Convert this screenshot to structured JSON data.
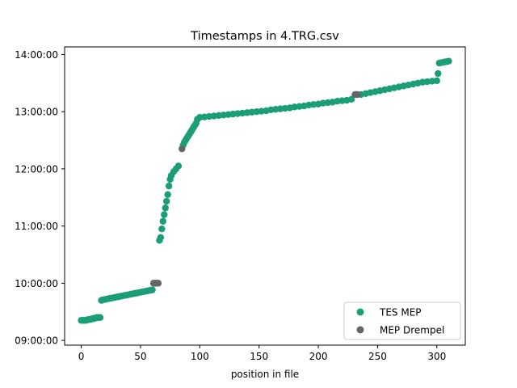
{
  "chart_data": {
    "type": "scatter",
    "title": "Timestamps in 4.TRG.csv",
    "xlabel": "position in file",
    "ylabel": "",
    "xlim": [
      -14,
      324
    ],
    "ylim": [
      "08:55:00",
      "14:08:00"
    ],
    "x_ticks": [
      0,
      50,
      100,
      150,
      200,
      250,
      300
    ],
    "y_ticks": [
      "09:00:00",
      "10:00:00",
      "11:00:00",
      "12:00:00",
      "13:00:00",
      "14:00:00"
    ],
    "grid": false,
    "legend_position": "lower-right",
    "series": [
      {
        "name": "TES MEP",
        "color": "#1b9e77",
        "points": [
          [
            0,
            "09:21:00"
          ],
          [
            1,
            "09:21:00"
          ],
          [
            2,
            "09:21:00"
          ],
          [
            3,
            "09:21:00"
          ],
          [
            4,
            "09:21:00"
          ],
          [
            5,
            "09:21:30"
          ],
          [
            6,
            "09:22:00"
          ],
          [
            7,
            "09:22:00"
          ],
          [
            8,
            "09:22:00"
          ],
          [
            9,
            "09:22:30"
          ],
          [
            10,
            "09:23:00"
          ],
          [
            11,
            "09:23:00"
          ],
          [
            12,
            "09:23:30"
          ],
          [
            13,
            "09:24:00"
          ],
          [
            14,
            "09:24:00"
          ],
          [
            15,
            "09:24:00"
          ],
          [
            16,
            "09:24:00"
          ],
          [
            17,
            "09:42:00"
          ],
          [
            18,
            "09:42:30"
          ],
          [
            20,
            "09:43:00"
          ],
          [
            22,
            "09:43:30"
          ],
          [
            24,
            "09:44:00"
          ],
          [
            26,
            "09:44:30"
          ],
          [
            28,
            "09:45:00"
          ],
          [
            30,
            "09:45:30"
          ],
          [
            32,
            "09:46:00"
          ],
          [
            34,
            "09:46:30"
          ],
          [
            36,
            "09:47:00"
          ],
          [
            38,
            "09:47:30"
          ],
          [
            40,
            "09:48:00"
          ],
          [
            42,
            "09:48:30"
          ],
          [
            44,
            "09:49:00"
          ],
          [
            46,
            "09:49:30"
          ],
          [
            48,
            "09:50:00"
          ],
          [
            50,
            "09:50:30"
          ],
          [
            52,
            "09:51:00"
          ],
          [
            54,
            "09:51:30"
          ],
          [
            56,
            "09:52:00"
          ],
          [
            58,
            "09:52:30"
          ],
          [
            60,
            "09:53:00"
          ],
          [
            66,
            "10:45:00"
          ],
          [
            67,
            "10:48:00"
          ],
          [
            68,
            "10:57:00"
          ],
          [
            69,
            "11:05:00"
          ],
          [
            70,
            "11:12:00"
          ],
          [
            71,
            "11:19:00"
          ],
          [
            72,
            "11:26:00"
          ],
          [
            73,
            "11:33:00"
          ],
          [
            74,
            "11:42:00"
          ],
          [
            75,
            "11:49:00"
          ],
          [
            76,
            "11:53:00"
          ],
          [
            78,
            "11:57:00"
          ],
          [
            80,
            "12:00:00"
          ],
          [
            82,
            "12:03:00"
          ],
          [
            86,
            "12:25:00"
          ],
          [
            87,
            "12:28:00"
          ],
          [
            88,
            "12:30:00"
          ],
          [
            89,
            "12:32:00"
          ],
          [
            90,
            "12:34:00"
          ],
          [
            91,
            "12:36:00"
          ],
          [
            92,
            "12:38:00"
          ],
          [
            93,
            "12:40:00"
          ],
          [
            94,
            "12:42:00"
          ],
          [
            95,
            "12:44:00"
          ],
          [
            96,
            "12:46:00"
          ],
          [
            97,
            "12:48:00"
          ],
          [
            98,
            "12:52:00"
          ],
          [
            100,
            "12:54:00"
          ],
          [
            104,
            "12:54:30"
          ],
          [
            108,
            "12:55:00"
          ],
          [
            112,
            "12:55:30"
          ],
          [
            116,
            "12:56:00"
          ],
          [
            120,
            "12:56:30"
          ],
          [
            124,
            "12:57:00"
          ],
          [
            128,
            "12:57:30"
          ],
          [
            132,
            "12:58:00"
          ],
          [
            136,
            "12:58:30"
          ],
          [
            140,
            "12:59:00"
          ],
          [
            144,
            "12:59:30"
          ],
          [
            148,
            "13:00:00"
          ],
          [
            152,
            "13:00:30"
          ],
          [
            156,
            "13:01:00"
          ],
          [
            160,
            "13:02:00"
          ],
          [
            164,
            "13:02:30"
          ],
          [
            168,
            "13:03:00"
          ],
          [
            172,
            "13:03:30"
          ],
          [
            176,
            "13:04:00"
          ],
          [
            180,
            "13:05:00"
          ],
          [
            184,
            "13:05:30"
          ],
          [
            188,
            "13:06:00"
          ],
          [
            192,
            "13:07:00"
          ],
          [
            196,
            "13:07:30"
          ],
          [
            200,
            "13:08:00"
          ],
          [
            204,
            "13:09:00"
          ],
          [
            208,
            "13:09:30"
          ],
          [
            212,
            "13:10:00"
          ],
          [
            216,
            "13:11:00"
          ],
          [
            220,
            "13:11:30"
          ],
          [
            224,
            "13:12:00"
          ],
          [
            228,
            "13:13:00"
          ],
          [
            236,
            "13:18:00"
          ],
          [
            240,
            "13:19:00"
          ],
          [
            244,
            "13:20:00"
          ],
          [
            248,
            "13:21:00"
          ],
          [
            252,
            "13:22:00"
          ],
          [
            256,
            "13:23:00"
          ],
          [
            260,
            "13:24:00"
          ],
          [
            264,
            "13:25:00"
          ],
          [
            268,
            "13:26:00"
          ],
          [
            272,
            "13:27:00"
          ],
          [
            276,
            "13:28:00"
          ],
          [
            280,
            "13:29:00"
          ],
          [
            284,
            "13:30:00"
          ],
          [
            288,
            "13:31:00"
          ],
          [
            292,
            "13:31:30"
          ],
          [
            296,
            "13:32:00"
          ],
          [
            300,
            "13:32:30"
          ],
          [
            301,
            "13:40:00"
          ],
          [
            302,
            "13:51:00"
          ],
          [
            304,
            "13:51:30"
          ],
          [
            306,
            "13:52:00"
          ],
          [
            308,
            "13:52:30"
          ],
          [
            310,
            "13:53:00"
          ]
        ]
      },
      {
        "name": "MEP Drempel",
        "color": "#666666",
        "points": [
          [
            61,
            "10:00:00"
          ],
          [
            62,
            "10:00:00"
          ],
          [
            63,
            "10:00:00"
          ],
          [
            64,
            "10:00:00"
          ],
          [
            65,
            "10:00:00"
          ],
          [
            85,
            "12:21:00"
          ],
          [
            231,
            "13:18:00"
          ],
          [
            232,
            "13:18:00"
          ],
          [
            233,
            "13:18:00"
          ]
        ]
      }
    ]
  }
}
